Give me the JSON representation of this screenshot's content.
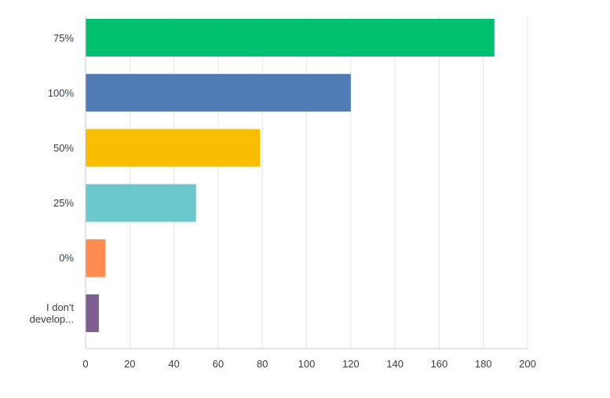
{
  "chart_data": {
    "type": "bar",
    "orientation": "horizontal",
    "categories": [
      {
        "label_lines": [
          "75%"
        ],
        "value": 185,
        "color": "#00bf6f"
      },
      {
        "label_lines": [
          "100%"
        ],
        "value": 120,
        "color": "#507cb6"
      },
      {
        "label_lines": [
          "50%"
        ],
        "value": 79,
        "color": "#f9be00"
      },
      {
        "label_lines": [
          "25%"
        ],
        "value": 50,
        "color": "#6bc8cd"
      },
      {
        "label_lines": [
          "0%"
        ],
        "value": 9,
        "color": "#ff8b4f"
      },
      {
        "label_lines": [
          "I don't",
          "develop..."
        ],
        "value": 6,
        "color": "#7d5e90"
      }
    ],
    "xlim": [
      0,
      200
    ],
    "xticks": [
      "0",
      "20",
      "40",
      "60",
      "80",
      "100",
      "120",
      "140",
      "160",
      "180",
      "200"
    ],
    "grid": true,
    "title": "",
    "xlabel": "",
    "ylabel": ""
  }
}
